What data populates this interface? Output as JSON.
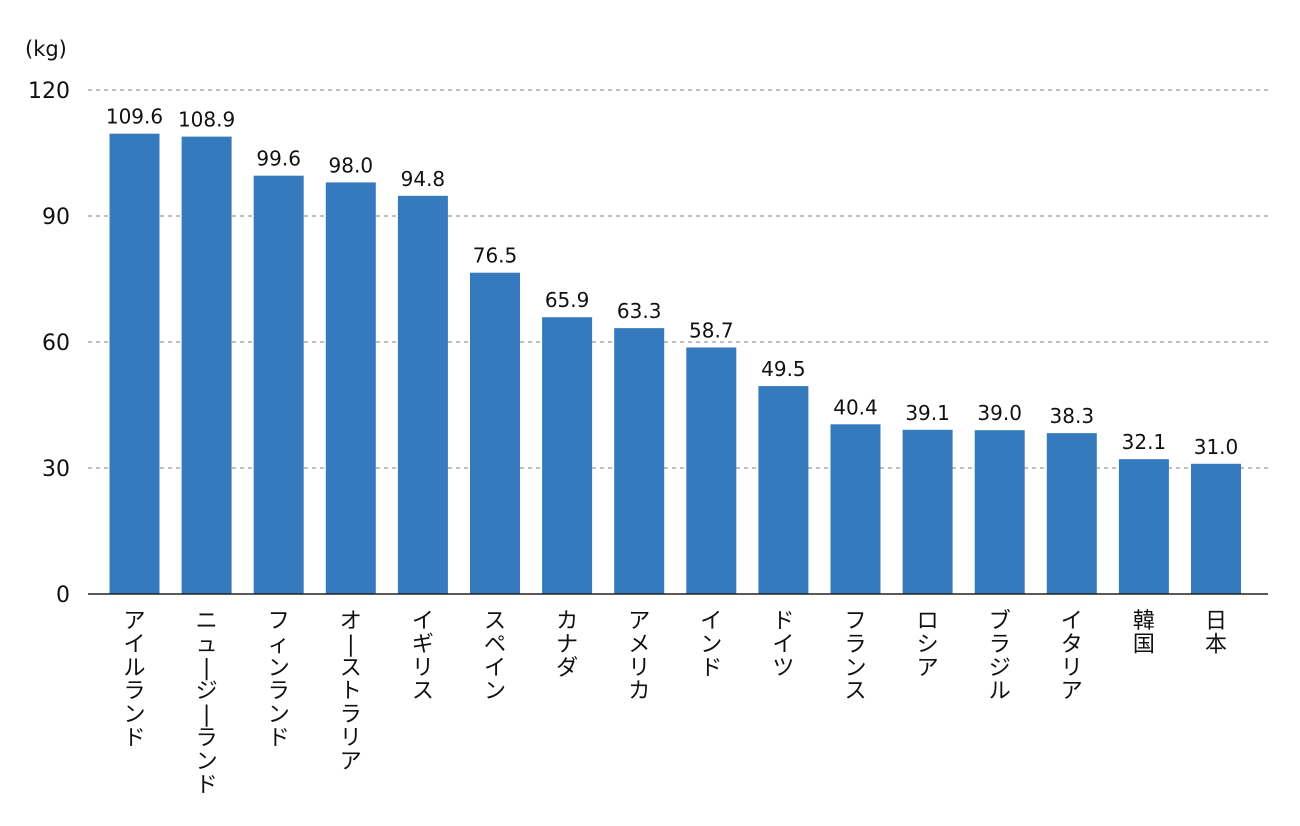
{
  "chart_data": {
    "type": "bar",
    "ylabel": "(kg)",
    "ylim": [
      0,
      120
    ],
    "yticks": [
      0,
      30,
      60,
      90,
      120
    ],
    "grid": true,
    "bar_color": "#357ABD",
    "categories": [
      "アイルランド",
      "ニュージーランド",
      "フィンランド",
      "オーストラリア",
      "イギリス",
      "スペイン",
      "カナダ",
      "アメリカ",
      "インド",
      "ドイツ",
      "フランス",
      "ロシア",
      "ブラジル",
      "イタリア",
      "韓国",
      "日本"
    ],
    "values": [
      109.6,
      108.9,
      99.6,
      98.0,
      94.8,
      76.5,
      65.9,
      63.3,
      58.7,
      49.5,
      40.4,
      39.1,
      39.0,
      38.3,
      32.1,
      31.0
    ],
    "value_labels": [
      "109.6",
      "108.9",
      "99.6",
      "98.0",
      "94.8",
      "76.5",
      "65.9",
      "63.3",
      "58.7",
      "49.5",
      "40.4",
      "39.1",
      "39.0",
      "38.3",
      "32.1",
      "31.0"
    ]
  }
}
